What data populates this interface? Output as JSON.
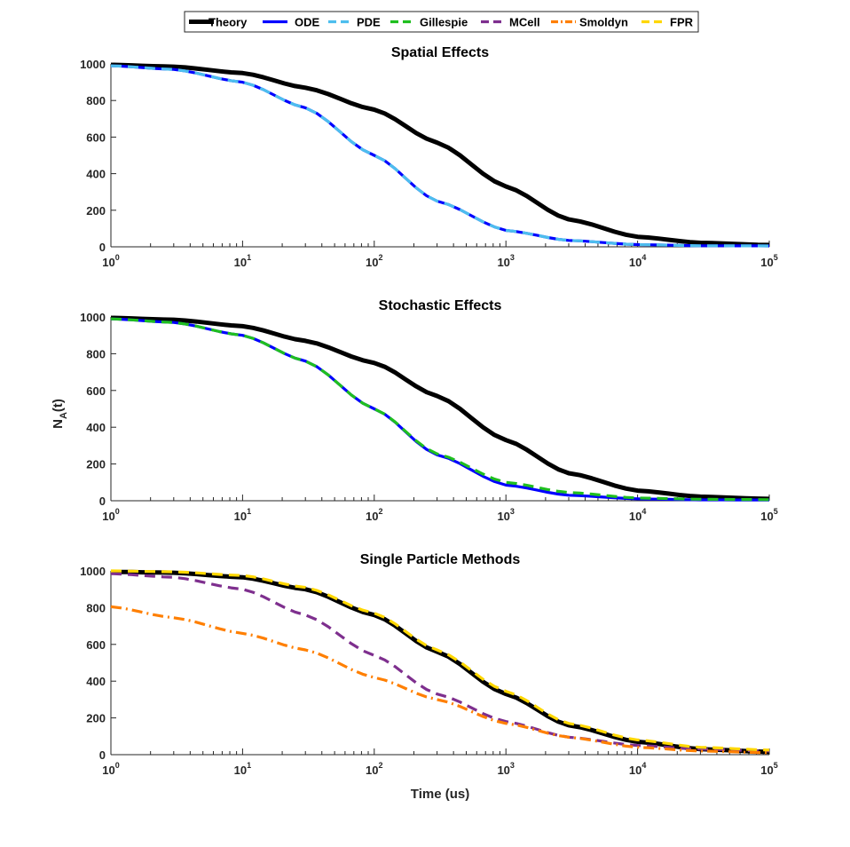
{
  "chart_data": {
    "type": "line",
    "x_scale": "log",
    "legend": {
      "placement": "top",
      "entries": [
        {
          "name": "Theory",
          "color": "#000000",
          "dash": "solid"
        },
        {
          "name": "ODE",
          "color": "#0000ff",
          "dash": "solid"
        },
        {
          "name": "PDE",
          "color": "#4dbeee",
          "dash": "dashed"
        },
        {
          "name": "Gillespie",
          "color": "#1fbf1f",
          "dash": "dashed"
        },
        {
          "name": "MCell",
          "color": "#7e2f8e",
          "dash": "dashed"
        },
        {
          "name": "Smoldyn",
          "color": "#ff7f00",
          "dash": "dashdot"
        },
        {
          "name": "FPR",
          "color": "#ffd700",
          "dash": "dashed"
        }
      ]
    },
    "ylabel_main": "N",
    "ylabel_sub": "A",
    "ylabel_tail": "(t)",
    "xlabel": "Time (us)",
    "tick_base": "10",
    "x_tick_exponents": [
      "0",
      "1",
      "2",
      "3",
      "4",
      "5"
    ],
    "y_ticks": [
      "0",
      "200",
      "400",
      "600",
      "800",
      "1000"
    ],
    "xlim": [
      1,
      100000
    ],
    "ylim": [
      0,
      1000
    ],
    "panels": [
      {
        "title": "Spatial Effects",
        "series": [
          {
            "name": "Theory",
            "x": [
              1,
              3,
              10,
              30,
              100,
              300,
              1000,
              3000,
              10000,
              30000,
              100000
            ],
            "values": [
              995,
              985,
              950,
              870,
              750,
              570,
              330,
              150,
              55,
              22,
              10
            ]
          },
          {
            "name": "ODE",
            "x": [
              1,
              3,
              10,
              30,
              100,
              300,
              1000,
              3000,
              10000,
              30000,
              100000
            ],
            "values": [
              990,
              970,
              900,
              760,
              500,
              250,
              90,
              35,
              12,
              6,
              5
            ]
          },
          {
            "name": "PDE",
            "x": [
              1,
              3,
              10,
              30,
              100,
              300,
              1000,
              3000,
              10000,
              30000,
              100000
            ],
            "values": [
              990,
              970,
              900,
              760,
              500,
              250,
              90,
              35,
              12,
              6,
              5
            ]
          }
        ]
      },
      {
        "title": "Stochastic Effects",
        "series": [
          {
            "name": "Theory",
            "x": [
              1,
              3,
              10,
              30,
              100,
              300,
              1000,
              3000,
              10000,
              30000,
              100000
            ],
            "values": [
              995,
              985,
              950,
              870,
              750,
              570,
              330,
              150,
              55,
              22,
              10
            ]
          },
          {
            "name": "ODE",
            "x": [
              1,
              3,
              10,
              30,
              100,
              300,
              1000,
              3000,
              10000,
              30000,
              100000
            ],
            "values": [
              990,
              970,
              900,
              760,
              500,
              250,
              85,
              30,
              10,
              5,
              4
            ]
          },
          {
            "name": "Gillespie",
            "x": [
              1,
              3,
              10,
              30,
              100,
              300,
              1000,
              3000,
              10000,
              30000,
              100000
            ],
            "values": [
              990,
              970,
              900,
              760,
              500,
              255,
              100,
              45,
              15,
              8,
              6
            ]
          }
        ]
      },
      {
        "title": "Single Particle Methods",
        "series": [
          {
            "name": "Theory",
            "x": [
              1,
              3,
              10,
              30,
              100,
              300,
              1000,
              3000,
              10000,
              30000,
              100000
            ],
            "values": [
              995,
              990,
              965,
              900,
              760,
              560,
              330,
              160,
              70,
              30,
              15
            ]
          },
          {
            "name": "MCell",
            "x": [
              1,
              3,
              10,
              30,
              100,
              300,
              1000,
              3000,
              10000,
              30000,
              100000
            ],
            "values": [
              985,
              965,
              900,
              760,
              540,
              330,
              180,
              95,
              50,
              30,
              20
            ]
          },
          {
            "name": "Smoldyn",
            "x": [
              1,
              3,
              10,
              30,
              100,
              300,
              1000,
              3000,
              10000,
              30000,
              100000
            ],
            "values": [
              805,
              745,
              660,
              570,
              420,
              300,
              170,
              95,
              40,
              20,
              10
            ]
          },
          {
            "name": "FPR",
            "x": [
              1,
              3,
              10,
              30,
              100,
              300,
              1000,
              3000,
              10000,
              30000,
              100000
            ],
            "values": [
              1000,
              995,
              975,
              910,
              770,
              570,
              345,
              170,
              80,
              40,
              25
            ]
          }
        ]
      }
    ]
  }
}
